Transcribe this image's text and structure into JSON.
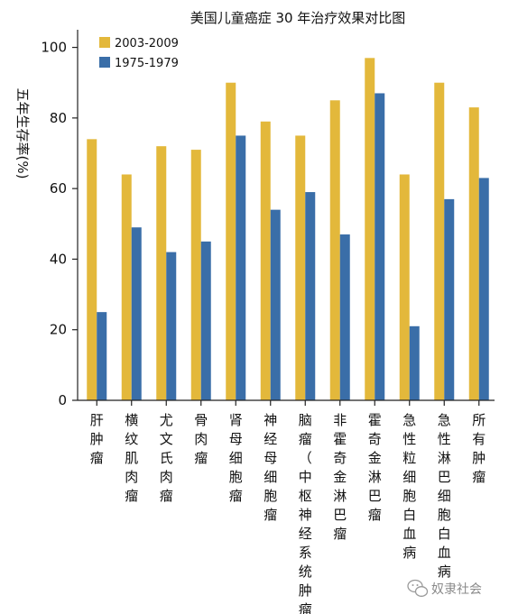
{
  "chart_data": {
    "type": "bar",
    "title": "美国儿童癌症 30 年治疗效果对比图",
    "ylabel": "五年生存率(%)",
    "xlabel": "",
    "ylim": [
      0,
      105
    ],
    "yticks": [
      0,
      20,
      40,
      60,
      80,
      100
    ],
    "grid": false,
    "legend_position": "top-left",
    "categories": [
      "肝肿瘤",
      "横纹肌肉瘤",
      "尤文氏肉瘤",
      "骨肉瘤",
      "肾母细胞瘤",
      "神经母细胞瘤",
      "脑瘤（中枢神经系统肿瘤）",
      "非霍奇金淋巴瘤",
      "霍奇金淋巴瘤",
      "急性粒细胞白血病",
      "急性淋巴细胞白血病",
      "所有肿瘤"
    ],
    "series": [
      {
        "name": "2003-2009",
        "color": "#e3b83b",
        "values": [
          74,
          64,
          72,
          71,
          90,
          79,
          75,
          85,
          97,
          64,
          90,
          83
        ]
      },
      {
        "name": "1975-1979",
        "color": "#3a6ea8",
        "values": [
          25,
          49,
          42,
          45,
          75,
          54,
          59,
          47,
          87,
          21,
          57,
          63
        ]
      }
    ]
  },
  "watermark": {
    "text": "奴隶社会",
    "icon": "wechat-icon"
  }
}
